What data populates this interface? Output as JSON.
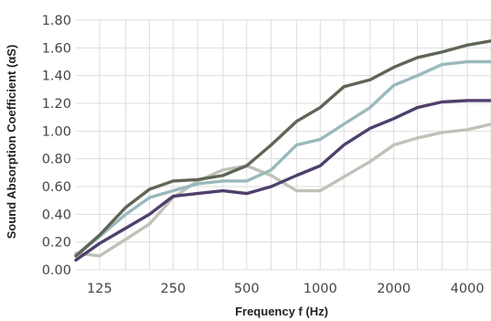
{
  "chart_data": {
    "type": "line",
    "x_scale": "log2",
    "grid": "both",
    "xlabel": "Frequency f (Hz)",
    "ylabel": "Sound Absorption Coefficient (αS)",
    "ylim": [
      0,
      1.8
    ],
    "xlim": [
      100,
      5000
    ],
    "x": [
      100,
      125,
      160,
      200,
      250,
      315,
      400,
      500,
      630,
      800,
      1000,
      1250,
      1600,
      2000,
      2500,
      3150,
      4000,
      5000
    ],
    "x_tick_values": [
      125,
      250,
      500,
      1000,
      2000,
      4000
    ],
    "x_tick_labels": [
      "125",
      "250",
      "500",
      "1000",
      "2000",
      "4000"
    ],
    "y_tick_values": [
      0,
      0.2,
      0.4,
      0.6,
      0.8,
      1.0,
      1.2,
      1.4,
      1.6,
      1.8
    ],
    "y_tick_labels": [
      "0.00",
      "0.20",
      "0.40",
      "0.60",
      "0.80",
      "1.00",
      "1.20",
      "1.40",
      "1.60",
      "1.80"
    ],
    "series": [
      {
        "color": "#c0c2b8",
        "values": [
          0.12,
          0.1,
          0.22,
          0.33,
          0.52,
          0.64,
          0.72,
          0.75,
          0.68,
          0.57,
          0.57,
          0.67,
          0.78,
          0.9,
          0.95,
          0.99,
          1.01,
          1.05
        ]
      },
      {
        "color": "#4f3f6c",
        "values": [
          0.07,
          0.19,
          0.3,
          0.4,
          0.53,
          0.55,
          0.57,
          0.55,
          0.6,
          0.68,
          0.75,
          0.9,
          1.02,
          1.09,
          1.17,
          1.21,
          1.22,
          1.22
        ]
      },
      {
        "color": "#9ab9bc",
        "values": [
          0.1,
          0.24,
          0.4,
          0.52,
          0.57,
          0.62,
          0.64,
          0.64,
          0.72,
          0.9,
          0.94,
          1.05,
          1.17,
          1.33,
          1.4,
          1.48,
          1.5,
          1.5
        ]
      },
      {
        "color": "#5e6657",
        "values": [
          0.1,
          0.25,
          0.45,
          0.58,
          0.64,
          0.65,
          0.68,
          0.75,
          0.9,
          1.07,
          1.17,
          1.32,
          1.37,
          1.46,
          1.53,
          1.57,
          1.62,
          1.65
        ]
      }
    ]
  }
}
